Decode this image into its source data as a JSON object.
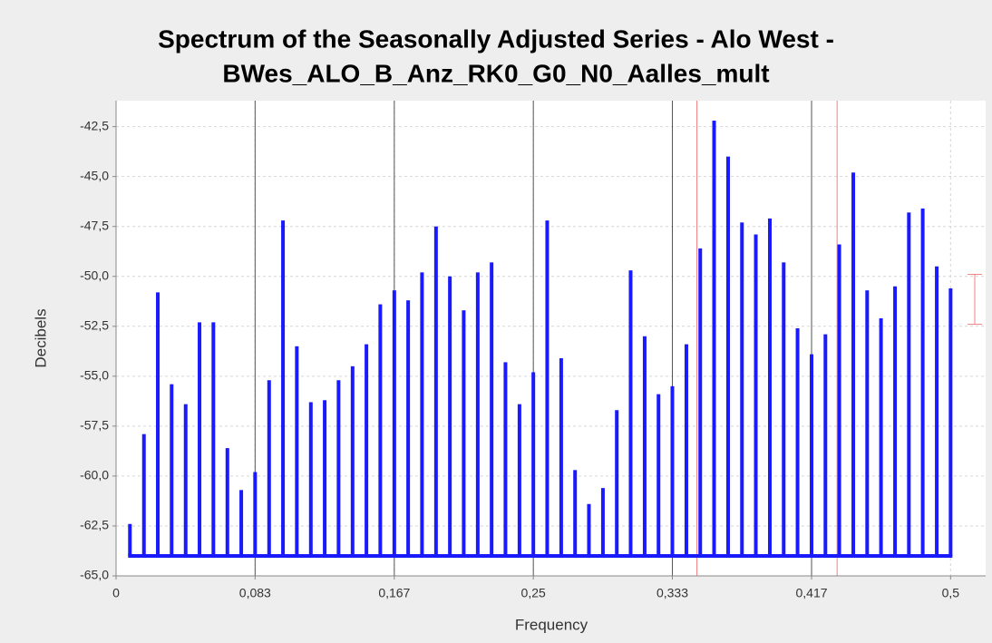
{
  "chart_data": {
    "type": "spike",
    "title": "Spectrum of the Seasonally Adjusted Series - Alo West -",
    "subtitle": "BWes_ALO_B_Anz_RK0_G0_N0_Aalles_mult",
    "x_label": "Frequency",
    "y_label": "Decibels",
    "color": "#1a1aff",
    "baseline": -64,
    "x": [
      0.0083,
      0.0167,
      0.025,
      0.0333,
      0.0417,
      0.05,
      0.0583,
      0.0667,
      0.075,
      0.0833,
      0.0917,
      0.1,
      0.1083,
      0.1167,
      0.125,
      0.1333,
      0.1417,
      0.15,
      0.1583,
      0.1667,
      0.175,
      0.1833,
      0.1917,
      0.2,
      0.2083,
      0.2167,
      0.225,
      0.2333,
      0.2417,
      0.25,
      0.2583,
      0.2667,
      0.275,
      0.2833,
      0.2917,
      0.3,
      0.3083,
      0.3167,
      0.325,
      0.3333,
      0.3417,
      0.35,
      0.3583,
      0.3667,
      0.375,
      0.3833,
      0.3917,
      0.4,
      0.4083,
      0.4167,
      0.425,
      0.4333,
      0.4417,
      0.45,
      0.4583,
      0.4667,
      0.475,
      0.4833,
      0.4917,
      0.5
    ],
    "values": [
      -62.4,
      -57.9,
      -50.8,
      -55.4,
      -56.4,
      -52.3,
      -52.3,
      -58.6,
      -60.7,
      -59.8,
      -55.2,
      -47.2,
      -53.5,
      -56.3,
      -56.2,
      -55.2,
      -54.5,
      -53.4,
      -51.4,
      -50.7,
      -51.2,
      -49.8,
      -47.5,
      -50.0,
      -51.7,
      -49.8,
      -49.3,
      -54.3,
      -56.4,
      -54.8,
      -47.2,
      -54.1,
      -59.7,
      -61.4,
      -60.6,
      -56.7,
      -49.7,
      -53.0,
      -55.9,
      -55.5,
      -53.4,
      -48.6,
      -42.2,
      -44.0,
      -47.3,
      -47.9,
      -47.1,
      -49.3,
      -52.6,
      -53.9,
      -52.9,
      -48.4,
      -44.8,
      -50.7,
      -52.1,
      -50.5,
      -46.8,
      -46.6,
      -49.5,
      -50.6
    ],
    "seasonal_frequencies": [
      0.0833,
      0.1667,
      0.25,
      0.3333,
      0.4167
    ],
    "trading_day_frequencies": [
      0.348,
      0.432
    ],
    "interval": {
      "high": -49.9,
      "low": -52.4
    },
    "xlim": [
      0,
      0.521
    ],
    "ylim": [
      -65,
      -41.2
    ],
    "xticks": [
      0,
      {
        "value": 0.0833,
        "label": "0,083"
      },
      {
        "value": 0.1667,
        "label": "0,167"
      },
      {
        "value": 0.25,
        "label": "0,25"
      },
      {
        "value": 0.3333,
        "label": "0,333"
      },
      {
        "value": 0.4167,
        "label": "0,417"
      },
      {
        "value": 0.5,
        "label": "0,5"
      }
    ],
    "yticks": [
      {
        "value": -65,
        "label": "-65,0"
      },
      {
        "value": -62.5,
        "label": "-62,5"
      },
      {
        "value": -60,
        "label": "-60,0"
      },
      {
        "value": -57.5,
        "label": "-57,5"
      },
      {
        "value": -55,
        "label": "-55,0"
      },
      {
        "value": -52.5,
        "label": "-52,5"
      },
      {
        "value": -50,
        "label": "-50,0"
      },
      {
        "value": -47.5,
        "label": "-47,5"
      },
      {
        "value": -45,
        "label": "-45,0"
      },
      {
        "value": -42.5,
        "label": "-42,5"
      }
    ],
    "grid": true
  }
}
